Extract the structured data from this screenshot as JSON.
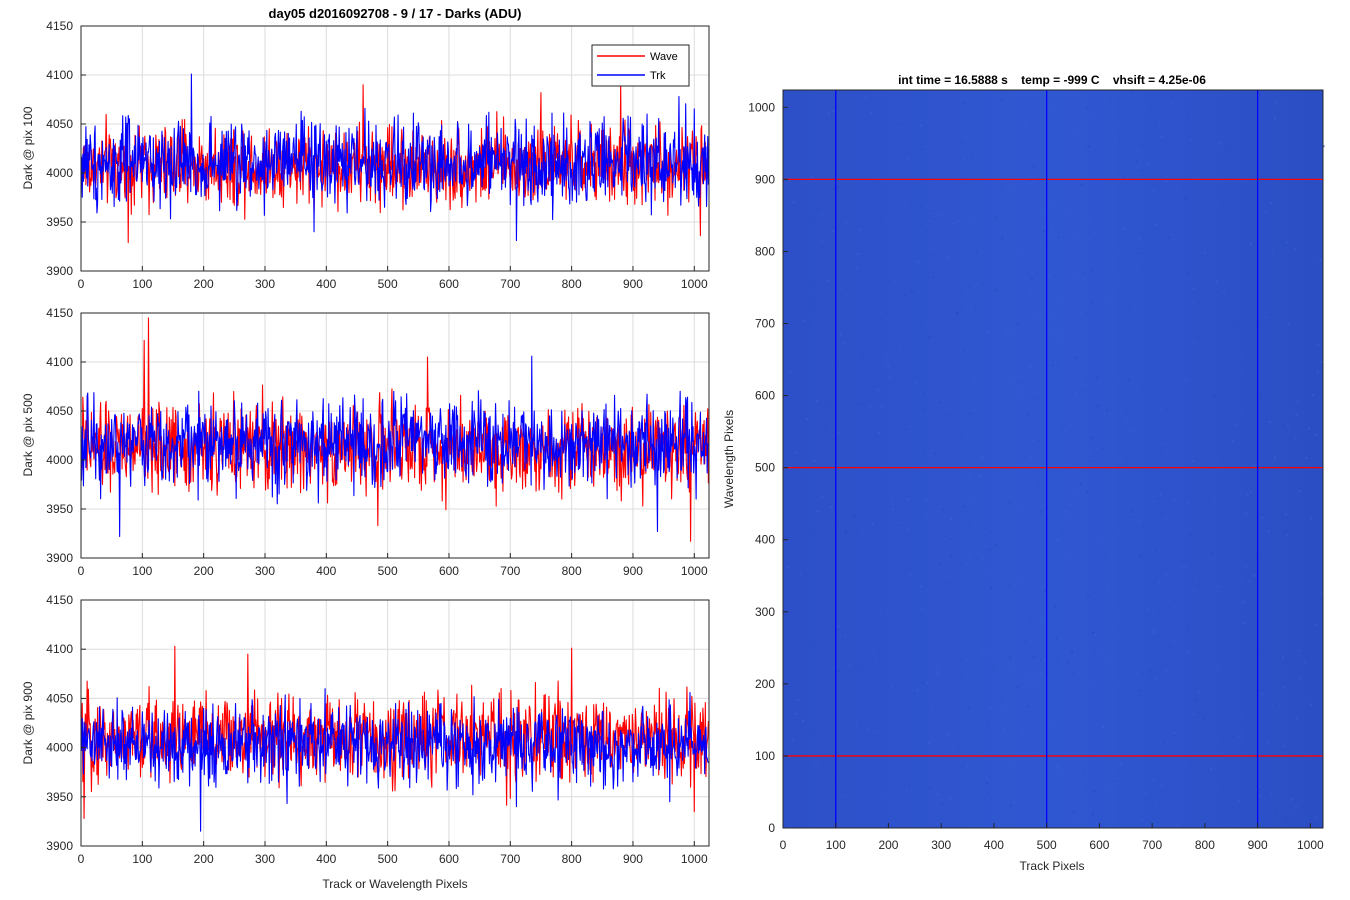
{
  "figure_title": "day05 d2016092708 - 9 / 17 - Darks (ADU)",
  "shared_xlabel": "Track or Wavelength Pixels",
  "chart_data": [
    {
      "type": "line",
      "ylabel": "Dark @ pix 100",
      "xlim": [
        0,
        1024
      ],
      "ylim": [
        3900,
        4150
      ],
      "xticks": [
        0,
        100,
        200,
        300,
        400,
        500,
        600,
        700,
        800,
        900,
        1000
      ],
      "yticks": [
        3900,
        3950,
        4000,
        4050,
        4100,
        4150
      ],
      "grid": true,
      "legend": {
        "position": "top-right",
        "entries": [
          "Wave",
          "Trk"
        ]
      },
      "series": [
        {
          "name": "Wave",
          "color": "#ff0000",
          "mean": 4008,
          "spread": 20,
          "min": 3929,
          "max": 4090,
          "n": 1024,
          "spikes": [
            [
              77,
              3929
            ],
            [
              460,
              4090
            ],
            [
              750,
              4082
            ],
            [
              880,
              4094
            ],
            [
              1010,
              3936
            ]
          ]
        },
        {
          "name": "Trk",
          "color": "#0000ff",
          "mean": 4010,
          "spread": 22,
          "min": 3931,
          "max": 4101,
          "n": 1024,
          "spikes": [
            [
              180,
              4101
            ],
            [
              710,
              3931
            ],
            [
              380,
              3940
            ],
            [
              975,
              4078
            ]
          ]
        }
      ]
    },
    {
      "type": "line",
      "ylabel": "Dark @ pix 500",
      "xlim": [
        0,
        1024
      ],
      "ylim": [
        3900,
        4150
      ],
      "xticks": [
        0,
        100,
        200,
        300,
        400,
        500,
        600,
        700,
        800,
        900,
        1000
      ],
      "yticks": [
        3900,
        3950,
        4000,
        4050,
        4100,
        4150
      ],
      "grid": true,
      "series": [
        {
          "name": "Wave",
          "color": "#ff0000",
          "mean": 4013,
          "spread": 22,
          "min": 3917,
          "max": 4145,
          "n": 1024,
          "spikes": [
            [
              110,
              4145
            ],
            [
              103,
              4122
            ],
            [
              484,
              3933
            ],
            [
              565,
              4105
            ],
            [
              994,
              3917
            ]
          ]
        },
        {
          "name": "Trk",
          "color": "#0000ff",
          "mean": 4018,
          "spread": 22,
          "min": 3922,
          "max": 4106,
          "n": 1024,
          "spikes": [
            [
              63,
              3922
            ],
            [
              735,
              4106
            ],
            [
              940,
              3927
            ]
          ]
        }
      ]
    },
    {
      "type": "line",
      "ylabel": "Dark @ pix 900",
      "xlim": [
        0,
        1024
      ],
      "ylim": [
        3900,
        4150
      ],
      "xticks": [
        0,
        100,
        200,
        300,
        400,
        500,
        600,
        700,
        800,
        900,
        1000
      ],
      "yticks": [
        3900,
        3950,
        4000,
        4050,
        4100,
        4150
      ],
      "grid": true,
      "series": [
        {
          "name": "Wave",
          "color": "#ff0000",
          "mean": 4010,
          "spread": 22,
          "min": 3928,
          "max": 4103,
          "n": 1024,
          "spikes": [
            [
              153,
              4103
            ],
            [
              800,
              4101
            ],
            [
              5,
              3928
            ],
            [
              1000,
              3935
            ],
            [
              272,
              4095
            ]
          ]
        },
        {
          "name": "Trk",
          "color": "#0000ff",
          "mean": 4003,
          "spread": 20,
          "min": 3915,
          "max": 4080,
          "n": 1024,
          "spikes": [
            [
              195,
              3915
            ],
            [
              710,
              3940
            ],
            [
              960,
              3945
            ]
          ]
        }
      ]
    },
    {
      "type": "heatmap",
      "title": "int time = 16.5888 s    temp = -999 C    vhsift = 4.25e-06",
      "xlabel": "Track Pixels",
      "ylabel": "Wavelength Pixels",
      "xlim": [
        0,
        1024
      ],
      "ylim": [
        0,
        1024
      ],
      "xticks": [
        0,
        100,
        200,
        300,
        400,
        500,
        600,
        700,
        800,
        900,
        1000
      ],
      "yticks": [
        0,
        100,
        200,
        300,
        400,
        500,
        600,
        700,
        800,
        900,
        1000
      ],
      "base_color": "#2e53cc",
      "vertical_markers": {
        "values": [
          100,
          500,
          900
        ],
        "color": "#0000ff"
      },
      "horizontal_markers": {
        "values": [
          100,
          500,
          900
        ],
        "color": "#ff0000"
      }
    }
  ]
}
